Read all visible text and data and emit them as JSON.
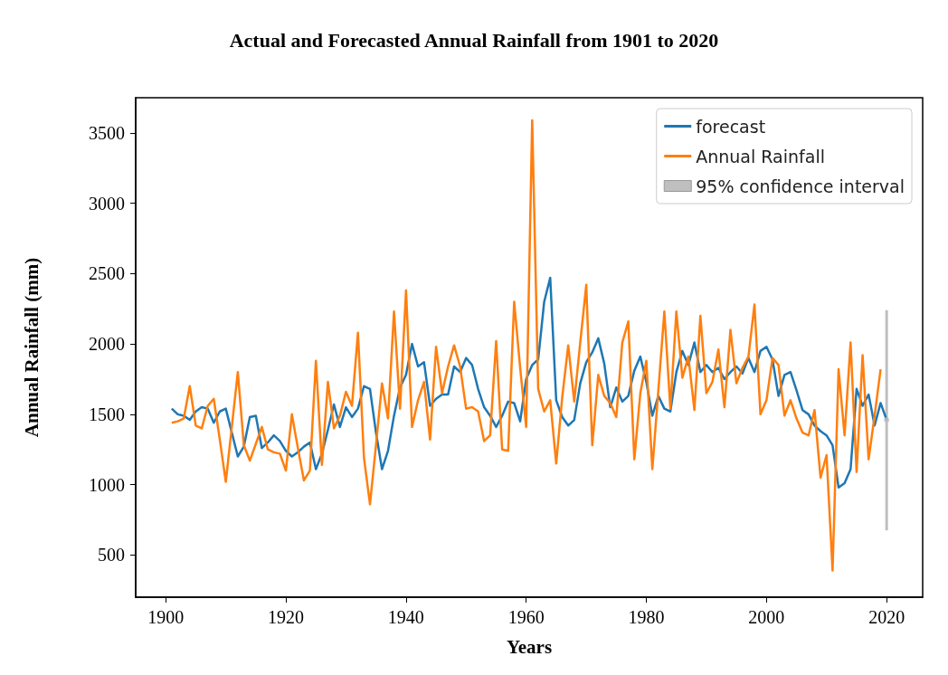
{
  "chart_data": {
    "type": "line",
    "title": "Actual and Forecasted Annual Rainfall from 1901 to 2020",
    "xlabel": "Years",
    "ylabel": "Annual Rainfall (mm)",
    "xlim": [
      1895,
      2026
    ],
    "xticks": [
      1900,
      1920,
      1940,
      1960,
      1980,
      2000,
      2020
    ],
    "ylim": [
      200,
      3750
    ],
    "yticks": [
      500,
      1000,
      1500,
      2000,
      2500,
      3000,
      3500
    ],
    "grid": false,
    "legend": "top right",
    "marker": "none",
    "line_style": "solid",
    "series": [
      {
        "name": "forecast",
        "color": "#1f77b4",
        "x": [
          1901,
          1902,
          1903,
          1904,
          1905,
          1906,
          1907,
          1908,
          1909,
          1910,
          1911,
          1912,
          1913,
          1914,
          1915,
          1916,
          1917,
          1918,
          1919,
          1920,
          1921,
          1922,
          1923,
          1924,
          1925,
          1926,
          1927,
          1928,
          1929,
          1930,
          1931,
          1932,
          1933,
          1934,
          1935,
          1936,
          1937,
          1938,
          1939,
          1940,
          1941,
          1942,
          1943,
          1944,
          1945,
          1946,
          1947,
          1948,
          1949,
          1950,
          1951,
          1952,
          1953,
          1954,
          1955,
          1956,
          1957,
          1958,
          1959,
          1960,
          1961,
          1962,
          1963,
          1964,
          1965,
          1966,
          1967,
          1968,
          1969,
          1970,
          1971,
          1972,
          1973,
          1974,
          1975,
          1976,
          1977,
          1978,
          1979,
          1980,
          1981,
          1982,
          1983,
          1984,
          1985,
          1986,
          1987,
          1988,
          1989,
          1990,
          1991,
          1992,
          1993,
          1994,
          1995,
          1996,
          1997,
          1998,
          1999,
          2000,
          2001,
          2002,
          2003,
          2004,
          2005,
          2006,
          2007,
          2008,
          2009,
          2010,
          2011,
          2012,
          2013,
          2014,
          2015,
          2016,
          2017,
          2018,
          2019,
          2020
        ],
        "values": [
          1540,
          1500,
          1490,
          1460,
          1520,
          1550,
          1540,
          1440,
          1520,
          1540,
          1370,
          1200,
          1270,
          1480,
          1490,
          1260,
          1300,
          1350,
          1310,
          1240,
          1200,
          1230,
          1270,
          1300,
          1110,
          1220,
          1390,
          1570,
          1410,
          1550,
          1480,
          1540,
          1700,
          1680,
          1370,
          1110,
          1240,
          1490,
          1690,
          1780,
          2000,
          1840,
          1870,
          1560,
          1610,
          1640,
          1640,
          1840,
          1800,
          1900,
          1850,
          1680,
          1550,
          1490,
          1410,
          1490,
          1590,
          1580,
          1450,
          1750,
          1850,
          1890,
          2300,
          2470,
          1600,
          1480,
          1420,
          1460,
          1720,
          1870,
          1940,
          2040,
          1860,
          1550,
          1690,
          1590,
          1630,
          1810,
          1910,
          1730,
          1490,
          1630,
          1540,
          1520,
          1800,
          1950,
          1850,
          2010,
          1800,
          1850,
          1800,
          1830,
          1750,
          1800,
          1840,
          1790,
          1900,
          1800,
          1950,
          1980,
          1890,
          1630,
          1780,
          1800,
          1670,
          1530,
          1500,
          1420,
          1380,
          1350,
          1280,
          980,
          1010,
          1110,
          1680,
          1560,
          1640,
          1420,
          1580,
          1460
        ]
      },
      {
        "name": "Annual Rainfall",
        "color": "#ff7f0e",
        "x": [
          1901,
          1902,
          1903,
          1904,
          1905,
          1906,
          1907,
          1908,
          1909,
          1910,
          1911,
          1912,
          1913,
          1914,
          1915,
          1916,
          1917,
          1918,
          1919,
          1920,
          1921,
          1922,
          1923,
          1924,
          1925,
          1926,
          1927,
          1928,
          1929,
          1930,
          1931,
          1932,
          1933,
          1934,
          1935,
          1936,
          1937,
          1938,
          1939,
          1940,
          1941,
          1942,
          1943,
          1944,
          1945,
          1946,
          1947,
          1948,
          1949,
          1950,
          1951,
          1952,
          1953,
          1954,
          1955,
          1956,
          1957,
          1958,
          1959,
          1960,
          1961,
          1962,
          1963,
          1964,
          1965,
          1966,
          1967,
          1968,
          1969,
          1970,
          1971,
          1972,
          1973,
          1974,
          1975,
          1976,
          1977,
          1978,
          1979,
          1980,
          1981,
          1982,
          1983,
          1984,
          1985,
          1986,
          1987,
          1988,
          1989,
          1990,
          1991,
          1992,
          1993,
          1994,
          1995,
          1996,
          1997,
          1998,
          1999,
          2000,
          2001,
          2002,
          2003,
          2004,
          2005,
          2006,
          2007,
          2008,
          2009,
          2010,
          2011,
          2012,
          2013,
          2014,
          2015,
          2016,
          2017,
          2018,
          2019
        ],
        "values": [
          1440,
          1450,
          1470,
          1700,
          1420,
          1400,
          1560,
          1610,
          1320,
          1020,
          1410,
          1800,
          1280,
          1170,
          1290,
          1410,
          1250,
          1230,
          1220,
          1100,
          1500,
          1260,
          1030,
          1100,
          1880,
          1140,
          1730,
          1400,
          1490,
          1660,
          1560,
          2080,
          1190,
          860,
          1280,
          1720,
          1470,
          2230,
          1540,
          2380,
          1410,
          1600,
          1730,
          1320,
          1980,
          1650,
          1840,
          1990,
          1840,
          1540,
          1550,
          1520,
          1310,
          1350,
          2020,
          1250,
          1240,
          2300,
          1830,
          1410,
          3590,
          1680,
          1520,
          1600,
          1150,
          1620,
          1990,
          1590,
          2010,
          2420,
          1280,
          1780,
          1630,
          1580,
          1480,
          2010,
          2160,
          1180,
          1650,
          1880,
          1110,
          1670,
          2230,
          1540,
          2230,
          1760,
          1910,
          1530,
          2200,
          1650,
          1730,
          1960,
          1550,
          2100,
          1720,
          1830,
          1910,
          2280,
          1500,
          1600,
          1900,
          1850,
          1490,
          1600,
          1470,
          1370,
          1350,
          1530,
          1050,
          1210,
          390,
          1820,
          1350,
          2010,
          1090,
          1920,
          1180,
          1490,
          1820
        ]
      },
      {
        "name": "95% confidence interval",
        "type": "scatter",
        "color": "#bfbfbf",
        "x": [
          2020
        ],
        "values": [
          1460
        ],
        "errors": [
          [
            675,
            2240
          ]
        ]
      }
    ]
  }
}
